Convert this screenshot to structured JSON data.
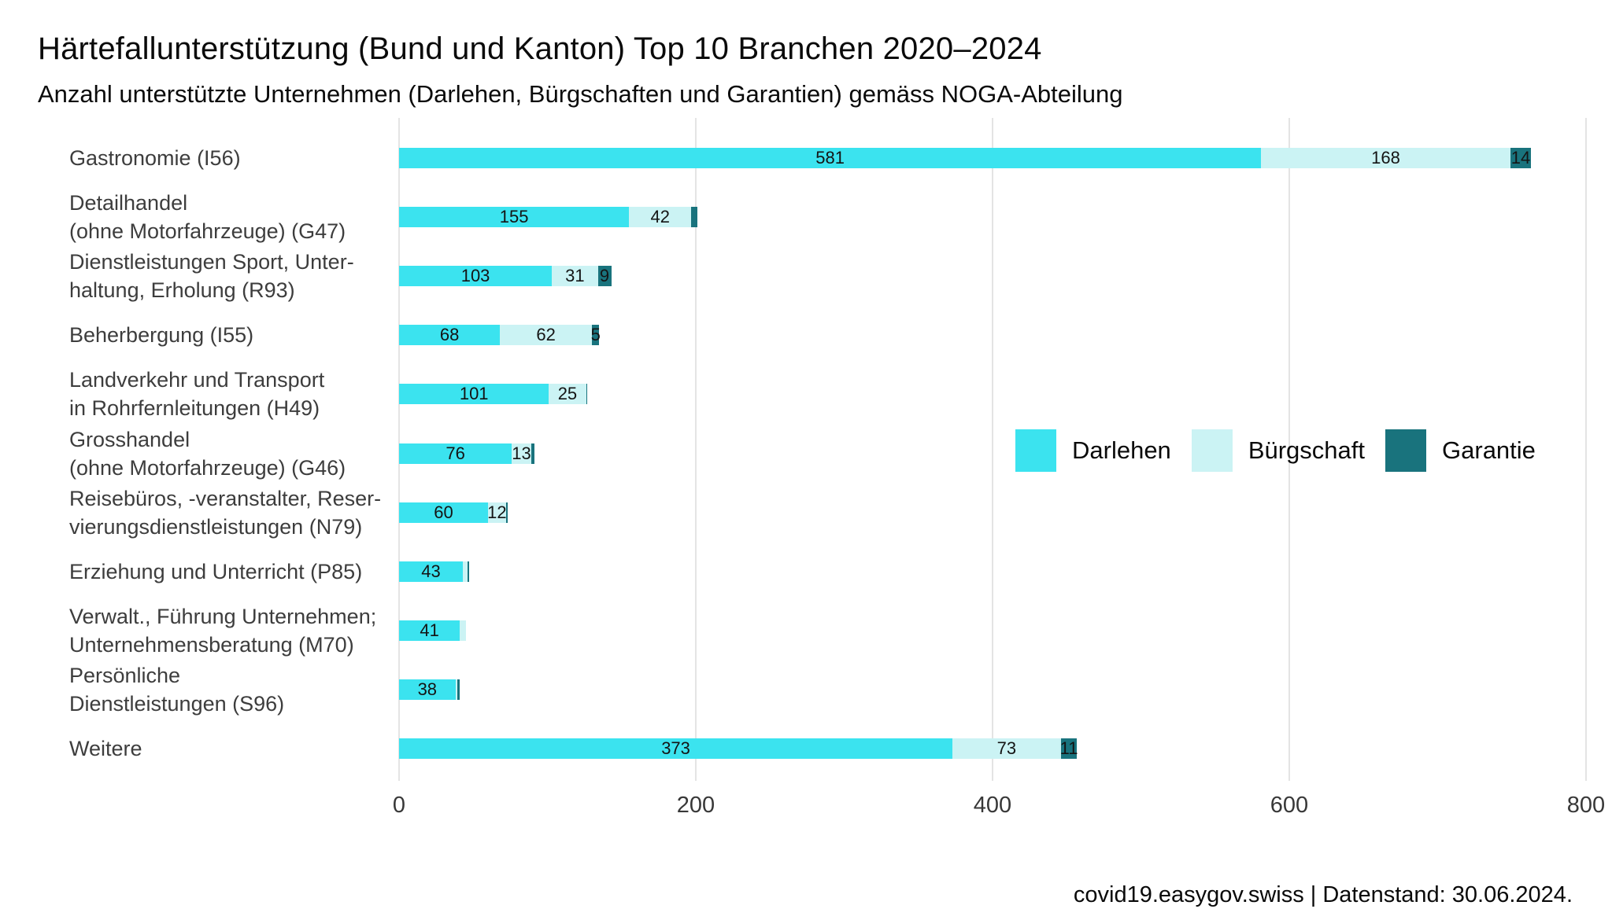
{
  "header": {
    "title": "Härtefallunterstützung (Bund und Kanton) Top 10 Branchen 2020–2024",
    "subtitle": "Anzahl unterstützte Unternehmen (Darlehen, Bürgschaften und Garantien) gemäss NOGA-Abteilung"
  },
  "footer": {
    "text": "covid19.easygov.swiss | Datenstand: 30.06.2024."
  },
  "colors": {
    "darlehen": "#3be3ef",
    "buergschaft": "#cbf3f4",
    "garantie": "#19737d",
    "grid": "#e4e4e4",
    "value_text": "#141414",
    "category_text": "#3d3d3d"
  },
  "chart_data": {
    "type": "bar",
    "orientation": "horizontal",
    "stacked": true,
    "title": "Härtefallunterstützung (Bund und Kanton) Top 10 Branchen 2020–2024",
    "subtitle": "Anzahl unterstützte Unternehmen (Darlehen, Bürgschaften und Garantien) gemäss NOGA-Abteilung",
    "xlabel": "",
    "ylabel": "",
    "xlim": [
      0,
      800
    ],
    "x_ticks": [
      0,
      200,
      400,
      600,
      800
    ],
    "grid": "vertical-only",
    "legend_position": "middle-right",
    "value_label_min": 5,
    "series_order": [
      "Darlehen",
      "Bürgschaft",
      "Garantie"
    ],
    "series_colors": {
      "Darlehen": "#3be3ef",
      "Bürgschaft": "#cbf3f4",
      "Garantie": "#19737d"
    },
    "categories": [
      {
        "label_lines": [
          "Gastronomie (I56)"
        ],
        "values": [
          581,
          168,
          14
        ]
      },
      {
        "label_lines": [
          "Detailhandel",
          "(ohne Motorfahrzeuge) (G47)"
        ],
        "values": [
          155,
          42,
          4
        ]
      },
      {
        "label_lines": [
          "Dienstleistungen Sport, Unter-",
          "haltung, Erholung (R93)"
        ],
        "values": [
          103,
          31,
          9
        ]
      },
      {
        "label_lines": [
          "Beherbergung (I55)"
        ],
        "values": [
          68,
          62,
          5
        ]
      },
      {
        "label_lines": [
          "Landverkehr und Transport",
          "in Rohrfernleitungen (H49)"
        ],
        "values": [
          101,
          25,
          1
        ]
      },
      {
        "label_lines": [
          "Grosshandel",
          "(ohne Motorfahrzeuge) (G46)"
        ],
        "values": [
          76,
          13,
          2
        ]
      },
      {
        "label_lines": [
          "Reisebüros, -veranstalter, Reser-",
          "vierungsdienstleistungen (N79)"
        ],
        "values": [
          60,
          12,
          1
        ]
      },
      {
        "label_lines": [
          "Erziehung und Unterricht (P85)"
        ],
        "values": [
          43,
          3,
          1
        ]
      },
      {
        "label_lines": [
          "Verwalt., Führung Unternehmen;",
          "Unternehmensberatung (M70)"
        ],
        "values": [
          41,
          4,
          0
        ]
      },
      {
        "label_lines": [
          "Persönliche",
          "Dienstleistungen (S96)"
        ],
        "values": [
          38,
          1,
          2
        ]
      },
      {
        "label_lines": [
          "Weitere"
        ],
        "values": [
          373,
          73,
          11
        ]
      }
    ]
  }
}
